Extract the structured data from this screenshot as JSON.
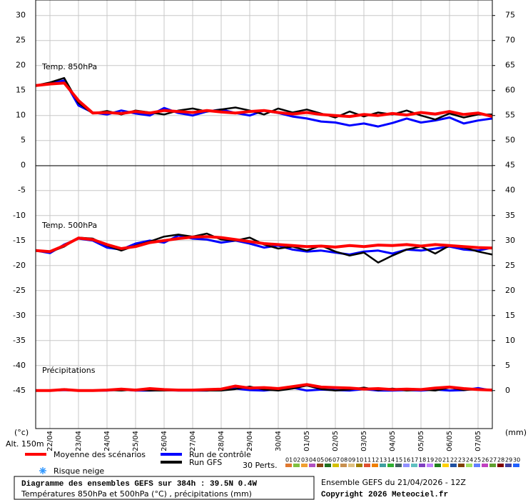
{
  "chart_data": {
    "type": "line",
    "title": "Diagramme des ensembles GEFS sur 384h : 39.5N 0.4W",
    "subtitle": "Températures 850hPa et 500hPa (°C) , précipitations (mm)",
    "run_label": "Ensemble GEFS du 21/04/2026 - 12Z",
    "copyright": "Copyright 2026 Meteociel.fr",
    "y_unit": "(°c)",
    "y2_unit": "(mm)",
    "altitude": "Alt. 150m",
    "members_label": "30 Perts.",
    "grid": true,
    "xlim": [
      0,
      384
    ],
    "xticks": [
      {
        "value": 12,
        "label": "22/04"
      },
      {
        "value": 36,
        "label": "23/04"
      },
      {
        "value": 60,
        "label": "24/04"
      },
      {
        "value": 84,
        "label": "25/04"
      },
      {
        "value": 108,
        "label": "26/04"
      },
      {
        "value": 132,
        "label": "27/04"
      },
      {
        "value": 156,
        "label": "28/04"
      },
      {
        "value": 180,
        "label": "29/04"
      },
      {
        "value": 204,
        "label": "30/04"
      },
      {
        "value": 228,
        "label": "01/05"
      },
      {
        "value": 252,
        "label": "02/05"
      },
      {
        "value": 276,
        "label": "03/05"
      },
      {
        "value": 300,
        "label": "04/05"
      },
      {
        "value": 324,
        "label": "05/05"
      },
      {
        "value": 348,
        "label": "06/05"
      },
      {
        "value": 372,
        "label": "07/05"
      }
    ],
    "ylim": [
      -52.6,
      33.1
    ],
    "yticks": [
      30,
      25,
      20,
      15,
      10,
      5,
      0,
      -5,
      -10,
      -15,
      -20,
      -25,
      -30,
      -35,
      -40,
      -45
    ],
    "y2lim": [
      -7.6,
      78.1
    ],
    "y2ticks": [
      75,
      70,
      65,
      60,
      55,
      50,
      45,
      40,
      35,
      30,
      25,
      20,
      15,
      10,
      5,
      0
    ],
    "legend": [
      {
        "name": "Moyenne des scénarios",
        "color": "#ff0000"
      },
      {
        "name": "Run de contrôle",
        "color": "#0000ff"
      },
      {
        "name": "Run GFS",
        "color": "#000000"
      },
      {
        "name": "Risque neige",
        "color": "#3399ff"
      }
    ],
    "members": [
      {
        "name": "01",
        "color": "#e07830"
      },
      {
        "name": "02",
        "color": "#80c040"
      },
      {
        "name": "03",
        "color": "#f0a030"
      },
      {
        "name": "04",
        "color": "#b050c0"
      },
      {
        "name": "05",
        "color": "#8b4513"
      },
      {
        "name": "06",
        "color": "#207020"
      },
      {
        "name": "07",
        "color": "#d4c000"
      },
      {
        "name": "08",
        "color": "#c89050"
      },
      {
        "name": "09",
        "color": "#e0c080"
      },
      {
        "name": "10",
        "color": "#a08000"
      },
      {
        "name": "11",
        "color": "#e05030"
      },
      {
        "name": "12",
        "color": "#f08000"
      },
      {
        "name": "13",
        "color": "#40a0a0"
      },
      {
        "name": "14",
        "color": "#30b030"
      },
      {
        "name": "15",
        "color": "#406060"
      },
      {
        "name": "16",
        "color": "#9090ff"
      },
      {
        "name": "17",
        "color": "#60c0c0"
      },
      {
        "name": "18",
        "color": "#8040c0"
      },
      {
        "name": "19",
        "color": "#c080ff"
      },
      {
        "name": "20",
        "color": "#208020"
      },
      {
        "name": "21",
        "color": "#ffd000"
      },
      {
        "name": "22",
        "color": "#2050a0"
      },
      {
        "name": "23",
        "color": "#804000"
      },
      {
        "name": "24",
        "color": "#a0e060"
      },
      {
        "name": "25",
        "color": "#6080ff"
      },
      {
        "name": "26",
        "color": "#c040c0"
      },
      {
        "name": "27",
        "color": "#60a030"
      },
      {
        "name": "28",
        "color": "#800000"
      },
      {
        "name": "29",
        "color": "#4040a0"
      },
      {
        "name": "30",
        "color": "#2060ff"
      }
    ],
    "x": [
      0,
      12,
      24,
      36,
      48,
      60,
      72,
      84,
      96,
      108,
      120,
      132,
      144,
      156,
      168,
      180,
      192,
      204,
      216,
      228,
      240,
      252,
      264,
      276,
      288,
      300,
      312,
      324,
      336,
      348,
      360,
      372,
      384
    ],
    "panels": [
      {
        "label": "Temp. 850hPa",
        "axis": "y",
        "mean": [
          16,
          16.3,
          16.5,
          13,
          10.5,
          10.6,
          10.4,
          10.8,
          10.5,
          11,
          10.8,
          10.6,
          11,
          10.7,
          10.5,
          10.8,
          11,
          10.6,
          10.3,
          10.6,
          10.2,
          10,
          9.8,
          10.2,
          10,
          10.4,
          10.1,
          10.6,
          10.3,
          10.8,
          10.2,
          10.5,
          9.8
        ],
        "control": [
          16,
          16.4,
          17,
          12,
          10.6,
          10.2,
          11,
          10.4,
          10,
          11.5,
          10.5,
          10,
          10.8,
          11.2,
          10.5,
          10,
          11,
          10.5,
          9.8,
          9.4,
          8.8,
          8.6,
          8,
          8.4,
          7.8,
          8.5,
          9.4,
          8.6,
          9,
          9.6,
          8.4,
          9,
          9.4
        ],
        "gfs": [
          16,
          16.6,
          17.5,
          12.5,
          10.4,
          10.9,
          10.2,
          11,
          10.6,
          10.2,
          11,
          11.4,
          10.8,
          11.2,
          11.6,
          11,
          10.2,
          11.4,
          10.6,
          11.2,
          10.4,
          9.6,
          10.8,
          9.8,
          10.6,
          10.2,
          11,
          10,
          9.2,
          10.4,
          9.6,
          10.2,
          10.2
        ]
      },
      {
        "label": "Temp. 500hPa",
        "axis": "y",
        "mean": [
          -17,
          -17.2,
          -16,
          -14.5,
          -14.8,
          -15.8,
          -16.6,
          -16.2,
          -15.4,
          -15,
          -14.6,
          -14.3,
          -14.2,
          -14.4,
          -14.8,
          -15.2,
          -15.6,
          -15.8,
          -16,
          -16.2,
          -16.1,
          -16.3,
          -16,
          -16.2,
          -15.9,
          -16,
          -15.8,
          -16.1,
          -15.8,
          -16,
          -16.2,
          -16.4,
          -16.5
        ],
        "control": [
          -17,
          -17.5,
          -15.8,
          -14.6,
          -15,
          -16.4,
          -16.8,
          -15.6,
          -15,
          -15.4,
          -14,
          -14.6,
          -14.8,
          -15.4,
          -15,
          -15.6,
          -16.4,
          -16,
          -16.8,
          -17.2,
          -17,
          -17.4,
          -17.8,
          -17.2,
          -17,
          -17.6,
          -16.8,
          -17,
          -16.6,
          -16.2,
          -16.8,
          -17,
          -16.4
        ],
        "gfs": [
          -17,
          -17.3,
          -16.2,
          -14.4,
          -14.6,
          -16,
          -17,
          -16,
          -15.2,
          -14.2,
          -13.8,
          -14.2,
          -13.6,
          -14.8,
          -15,
          -14.4,
          -15.8,
          -16.6,
          -16.2,
          -17,
          -16,
          -17.2,
          -18,
          -17.4,
          -19.4,
          -18,
          -16.8,
          -16.2,
          -17.6,
          -16,
          -16.4,
          -17.2,
          -17.8
        ]
      },
      {
        "label": "Précipitations",
        "axis": "y2",
        "mean": [
          0,
          0,
          0.2,
          0,
          0,
          0.1,
          0.3,
          0.1,
          0.4,
          0.2,
          0.1,
          0.1,
          0.2,
          0.3,
          0.9,
          0.5,
          0.6,
          0.4,
          0.8,
          1.2,
          0.7,
          0.6,
          0.5,
          0.3,
          0.4,
          0.2,
          0.3,
          0.2,
          0.5,
          0.7,
          0.4,
          0.2,
          0.1
        ],
        "control": [
          0,
          0,
          0.1,
          0,
          0,
          0,
          0.2,
          0,
          0,
          0.1,
          0,
          0,
          0,
          0.2,
          0.4,
          0.1,
          0,
          0.3,
          0.6,
          0,
          0.2,
          0.1,
          0,
          0.3,
          0,
          0,
          0.1,
          0,
          0.2,
          0,
          0.1,
          0.5,
          0
        ],
        "gfs": [
          0,
          0,
          0.3,
          0,
          0,
          0.1,
          0,
          0.2,
          0,
          0,
          0.1,
          0,
          0,
          0,
          0.3,
          0.8,
          0.2,
          0,
          0.4,
          1,
          0.3,
          0,
          0.2,
          0.6,
          0.1,
          0.4,
          0,
          0.2,
          0,
          0.6,
          0.1,
          0.3,
          0.1
        ]
      }
    ]
  }
}
